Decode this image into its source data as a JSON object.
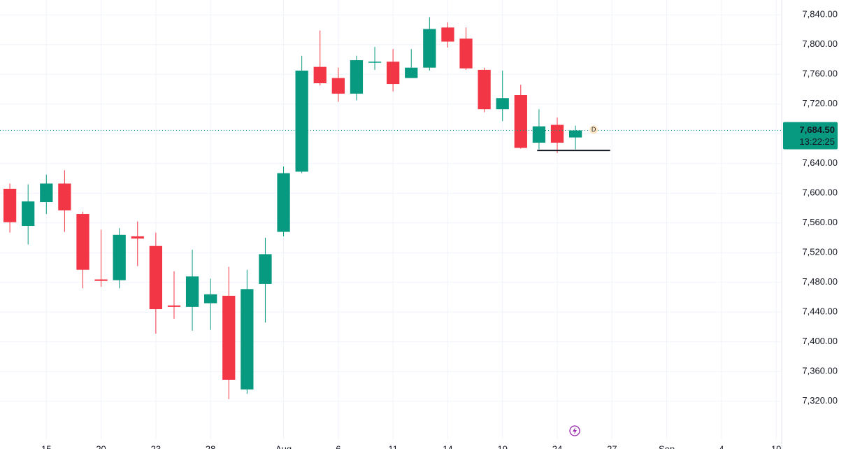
{
  "chart_data": {
    "type": "candlestick",
    "x": [
      0,
      1,
      2,
      3,
      4,
      5,
      6,
      7,
      8,
      9,
      10,
      11,
      12,
      13,
      14,
      15,
      16,
      17,
      18,
      19,
      20,
      21,
      22,
      23,
      24,
      25,
      26,
      27,
      28,
      29,
      30,
      31
    ],
    "open": [
      7606,
      7556,
      7588,
      7613,
      7572,
      7484,
      7483,
      7542,
      7529,
      7449,
      7447,
      7452,
      7462,
      7336,
      7478,
      7548,
      7629,
      7770,
      7755,
      7734,
      7776,
      7777,
      7755,
      7769,
      7823,
      7808,
      7766,
      7713,
      7732,
      7668,
      7692,
      7675
    ],
    "high": [
      7613,
      7612,
      7625,
      7631,
      7575,
      7551,
      7553,
      7562,
      7547,
      7495,
      7524,
      7485,
      7501,
      7497,
      7540,
      7636,
      7785,
      7819,
      7769,
      7785,
      7797,
      7794,
      7794,
      7837,
      7830,
      7823,
      7769,
      7765,
      7746,
      7713,
      7702,
      7691
    ],
    "low": [
      7547,
      7531,
      7572,
      7548,
      7472,
      7474,
      7472,
      7502,
      7411,
      7431,
      7415,
      7416,
      7323,
      7330,
      7426,
      7542,
      7627,
      7745,
      7723,
      7725,
      7766,
      7737,
      7755,
      7765,
      7796,
      7766,
      7709,
      7697,
      7660,
      7659,
      7654,
      7659
    ],
    "close": [
      7561,
      7589,
      7613,
      7577,
      7497,
      7482,
      7544,
      7539,
      7444,
      7447,
      7488,
      7464,
      7349,
      7471,
      7518,
      7627,
      7765,
      7748,
      7734,
      7779,
      7777,
      7747,
      7769,
      7821,
      7804,
      7768,
      7713,
      7728,
      7661,
      7690,
      7668,
      7684.5
    ],
    "up_color": "#089981",
    "down_color": "#f23645",
    "xlim": [
      -0.54,
      42.3
    ],
    "ylim": [
      7269,
      7860
    ],
    "yticks": [
      {
        "value": 7320,
        "label": "7,320.00"
      },
      {
        "value": 7360,
        "label": "7,360.00"
      },
      {
        "value": 7400,
        "label": "7,400.00"
      },
      {
        "value": 7440,
        "label": "7,440.00"
      },
      {
        "value": 7480,
        "label": "7,480.00"
      },
      {
        "value": 7520,
        "label": "7,520.00"
      },
      {
        "value": 7560,
        "label": "7,560.00"
      },
      {
        "value": 7600,
        "label": "7,600.00"
      },
      {
        "value": 7640,
        "label": "7,640.00"
      },
      {
        "value": 7680,
        "label": "7,680.00"
      },
      {
        "value": 7720,
        "label": "7,720.00"
      },
      {
        "value": 7760,
        "label": "7,760.00"
      },
      {
        "value": 7800,
        "label": "7,800.00"
      },
      {
        "value": 7840,
        "label": "7,840.00"
      }
    ],
    "hidden_ytick_labels": [
      7680
    ],
    "xticks": [
      {
        "value": 2,
        "label": "15"
      },
      {
        "value": 5,
        "label": "20"
      },
      {
        "value": 8,
        "label": "23"
      },
      {
        "value": 11,
        "label": "28"
      },
      {
        "value": 15,
        "label": "Aug"
      },
      {
        "value": 18,
        "label": "6"
      },
      {
        "value": 21,
        "label": "11"
      },
      {
        "value": 24,
        "label": "14"
      },
      {
        "value": 27,
        "label": "19"
      },
      {
        "value": 30,
        "label": "24"
      },
      {
        "value": 33,
        "label": "27"
      },
      {
        "value": 36,
        "label": "Sep"
      },
      {
        "value": 39,
        "label": "4"
      },
      {
        "value": 42,
        "label": "10"
      }
    ],
    "grid": true,
    "last_price": {
      "value": 7684.5,
      "label": "7,684.50"
    },
    "countdown": "13:22:25",
    "interval_marker": "D",
    "support_line": {
      "value": 7657.6,
      "x": [
        28.9,
        32.9
      ]
    }
  }
}
